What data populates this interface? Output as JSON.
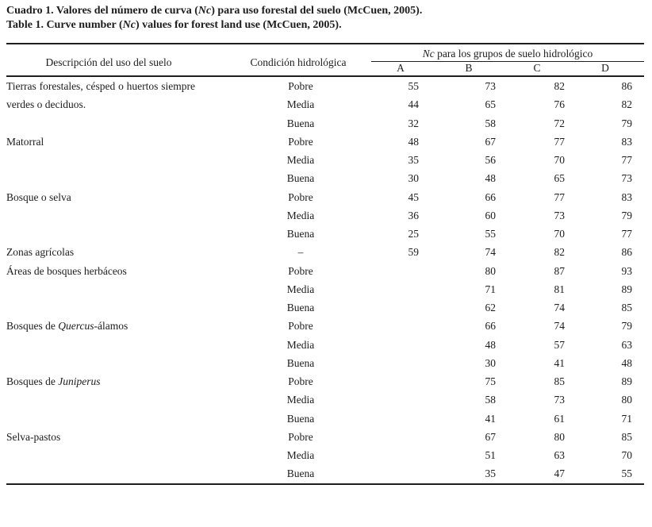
{
  "captions": {
    "spanish": {
      "prefix": "Cuadro 1. Valores del número de curva (",
      "italic_var": "Nc",
      "suffix": ") para uso forestal del suelo (McCuen, 2005)."
    },
    "english": {
      "prefix": "Table 1. Curve number (",
      "italic_var": "Nc",
      "suffix": ") values for forest land use (McCuen, 2005)."
    }
  },
  "table": {
    "columns": {
      "description": "Descripción del uso del suelo",
      "condition": "Condición hidrológica",
      "nc_group": {
        "italic_var": "Nc",
        "rest": " para los grupos de suelo hidrológico"
      },
      "soil_groups": [
        "A",
        "B",
        "C",
        "D"
      ]
    },
    "groups": [
      {
        "description_parts": [
          {
            "text": "Tierras forestales, césped o huertos siempre verdes o deciduos.",
            "italic": false
          }
        ],
        "wrap": true,
        "rows": [
          {
            "condition": "Pobre",
            "values": [
              "55",
              "73",
              "82",
              "86"
            ]
          },
          {
            "condition": "Media",
            "values": [
              "44",
              "65",
              "76",
              "82"
            ]
          },
          {
            "condition": "Buena",
            "values": [
              "32",
              "58",
              "72",
              "79"
            ]
          }
        ]
      },
      {
        "description_parts": [
          {
            "text": "Matorral",
            "italic": false
          }
        ],
        "rows": [
          {
            "condition": "Pobre",
            "values": [
              "48",
              "67",
              "77",
              "83"
            ]
          },
          {
            "condition": "Media",
            "values": [
              "35",
              "56",
              "70",
              "77"
            ]
          },
          {
            "condition": "Buena",
            "values": [
              "30",
              "48",
              "65",
              "73"
            ]
          }
        ]
      },
      {
        "description_parts": [
          {
            "text": "Bosque o selva",
            "italic": false
          }
        ],
        "rows": [
          {
            "condition": "Pobre",
            "values": [
              "45",
              "66",
              "77",
              "83"
            ]
          },
          {
            "condition": "Media",
            "values": [
              "36",
              "60",
              "73",
              "79"
            ]
          },
          {
            "condition": "Buena",
            "values": [
              "25",
              "55",
              "70",
              "77"
            ]
          }
        ]
      },
      {
        "description_parts": [
          {
            "text": "Zonas agrícolas",
            "italic": false
          }
        ],
        "rows": [
          {
            "condition": "–",
            "values": [
              "59",
              "74",
              "82",
              "86"
            ]
          }
        ]
      },
      {
        "description_parts": [
          {
            "text": "Áreas de bosques herbáceos",
            "italic": false
          }
        ],
        "rows": [
          {
            "condition": "Pobre",
            "values": [
              "",
              "80",
              "87",
              "93"
            ]
          },
          {
            "condition": "Media",
            "values": [
              "",
              "71",
              "81",
              "89"
            ]
          },
          {
            "condition": "Buena",
            "values": [
              "",
              "62",
              "74",
              "85"
            ]
          }
        ]
      },
      {
        "description_parts": [
          {
            "text": "Bosques de ",
            "italic": false
          },
          {
            "text": "Quercus",
            "italic": true
          },
          {
            "text": "-álamos",
            "italic": false
          }
        ],
        "rows": [
          {
            "condition": "Pobre",
            "values": [
              "",
              "66",
              "74",
              "79"
            ]
          },
          {
            "condition": "Media",
            "values": [
              "",
              "48",
              "57",
              "63"
            ]
          },
          {
            "condition": "Buena",
            "values": [
              "",
              "30",
              "41",
              "48"
            ]
          }
        ]
      },
      {
        "description_parts": [
          {
            "text": "Bosques de ",
            "italic": false
          },
          {
            "text": "Juniperus",
            "italic": true
          }
        ],
        "rows": [
          {
            "condition": "Pobre",
            "values": [
              "",
              "75",
              "85",
              "89"
            ]
          },
          {
            "condition": "Media",
            "values": [
              "",
              "58",
              "73",
              "80"
            ]
          },
          {
            "condition": "Buena",
            "values": [
              "",
              "41",
              "61",
              "71"
            ]
          }
        ]
      },
      {
        "description_parts": [
          {
            "text": "Selva-pastos",
            "italic": false
          }
        ],
        "rows": [
          {
            "condition": "Pobre",
            "values": [
              "",
              "67",
              "80",
              "85"
            ]
          },
          {
            "condition": "Media",
            "values": [
              "",
              "51",
              "63",
              "70"
            ]
          },
          {
            "condition": "Buena",
            "values": [
              "",
              "35",
              "47",
              "55"
            ]
          }
        ]
      }
    ]
  }
}
